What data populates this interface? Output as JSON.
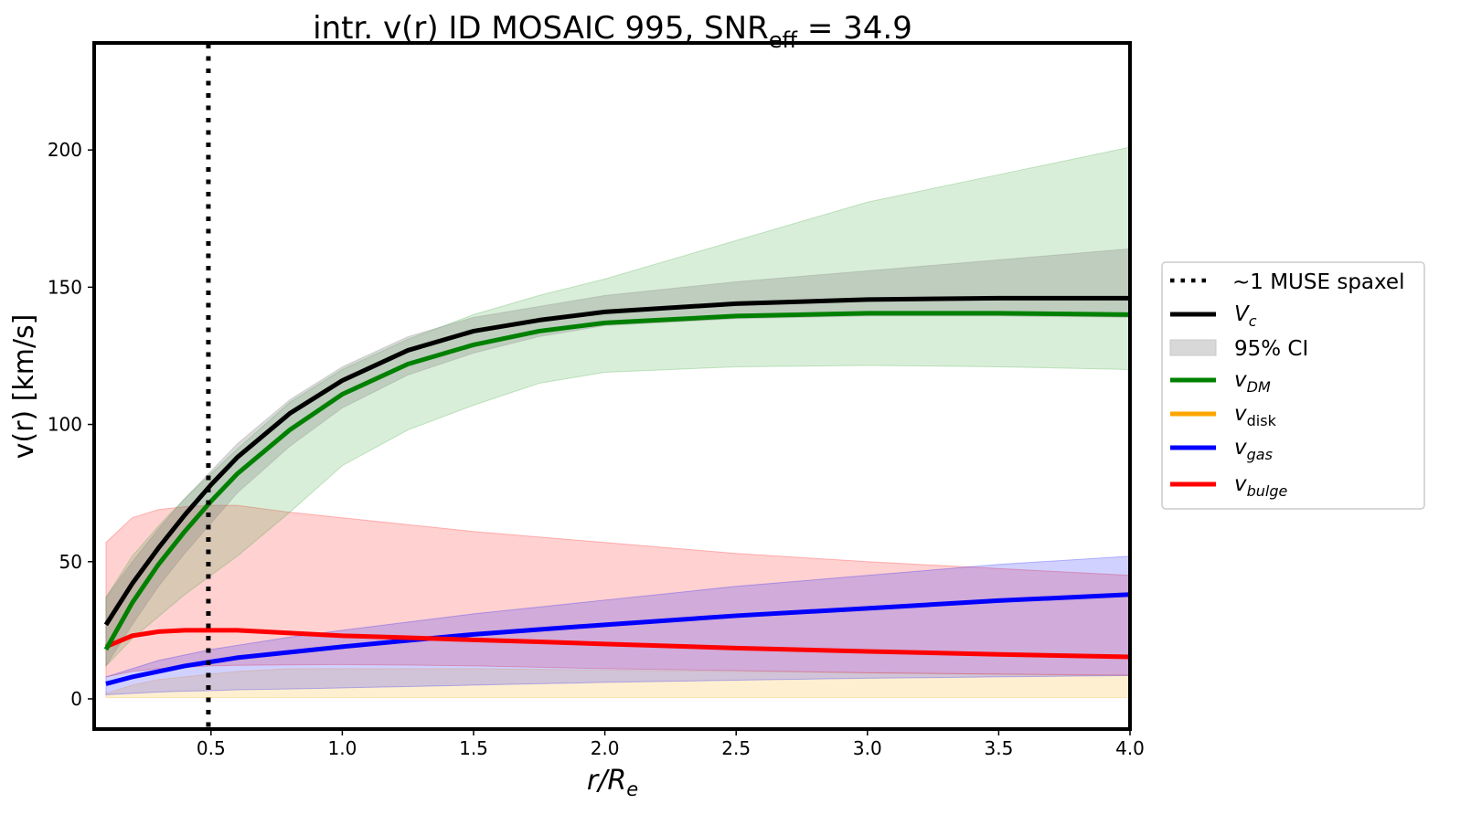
{
  "chart_data": {
    "type": "line",
    "title": "intr. v(r) ID MOSAIC 995, SNR",
    "title_sub": "eff",
    "title_tail": " = 34.9",
    "xlabel": "r/R",
    "xlabel_sub": "e",
    "ylabel": "v(r) [km/s]",
    "xlim": [
      0.055,
      4.0
    ],
    "ylim": [
      -11,
      239
    ],
    "xticks": [
      "0.5",
      "1.0",
      "1.5",
      "2.0",
      "2.5",
      "3.0",
      "3.5",
      "4.0"
    ],
    "yticks": [
      "0",
      "50",
      "100",
      "150",
      "200"
    ],
    "vline": {
      "x": 0.49,
      "label": "~1 MUSE spaxel"
    },
    "x": [
      0.1,
      0.2,
      0.3,
      0.4,
      0.5,
      0.6,
      0.8,
      1.0,
      1.25,
      1.5,
      1.75,
      2.0,
      2.5,
      3.0,
      3.5,
      4.0
    ],
    "series": [
      {
        "name": "V",
        "sub": "c",
        "color": "#000000",
        "values": [
          27,
          42,
          55,
          67,
          78,
          88,
          104,
          116,
          127,
          134,
          138,
          141,
          144,
          145.5,
          146,
          146
        ],
        "ci_lo": [
          12,
          27,
          41,
          53,
          64,
          75,
          92,
          106,
          118,
          126,
          132,
          136,
          138.5,
          139.5,
          139.5,
          139
        ],
        "ci_hi": [
          37,
          50,
          62,
          73,
          83,
          93,
          109,
          121,
          132,
          139,
          143,
          147,
          152,
          156,
          160,
          164
        ],
        "ci_color": "#808080"
      },
      {
        "name": "v",
        "sub": "DM",
        "color": "#008000",
        "values": [
          18,
          35,
          49,
          61,
          72,
          82,
          98,
          111,
          122,
          129,
          134,
          137,
          139.5,
          140.5,
          140.5,
          140
        ],
        "ci_lo": [
          12,
          22,
          30,
          38,
          45,
          52,
          68,
          85,
          98,
          107,
          115,
          119,
          121,
          121.5,
          121,
          120
        ],
        "ci_hi": [
          37,
          52,
          63,
          73,
          82,
          91,
          108,
          120,
          131,
          140,
          147,
          153,
          167,
          181,
          191,
          201
        ],
        "ci_color": "#2ca02c"
      },
      {
        "name": "v",
        "sub": "disk",
        "color": "#ffa500",
        "values": null,
        "ci_lo": [
          0.5,
          0.5,
          0.5,
          0.5,
          0.5,
          0.5,
          0.5,
          0.5,
          0.5,
          0.5,
          0.5,
          0.5,
          0.5,
          0.5,
          0.5,
          0.5
        ],
        "ci_hi": [
          2,
          5,
          7,
          8,
          9,
          10,
          11,
          11,
          11,
          11,
          10.8,
          10.5,
          10,
          9.5,
          9,
          8.5
        ],
        "ci_color": "#ffa500"
      },
      {
        "name": "v",
        "sub": "gas",
        "color": "#0000ff",
        "values": [
          5.5,
          8,
          10,
          12,
          13.5,
          15,
          17,
          19,
          21.3,
          23.5,
          25.3,
          27,
          30.3,
          33,
          35.8,
          38
        ],
        "ci_lo": [
          1.5,
          2,
          2.5,
          2.8,
          3,
          3.3,
          3.6,
          4,
          4.5,
          5,
          5.5,
          6,
          6.8,
          7.5,
          8,
          8.5
        ],
        "ci_hi": [
          8,
          11,
          14,
          16,
          18,
          19.5,
          22.5,
          25,
          28,
          31,
          33.5,
          36,
          41,
          45,
          49,
          52
        ],
        "ci_color": "#0000ff"
      },
      {
        "name": "v",
        "sub": "bulge",
        "color": "#ff0000",
        "values": [
          19,
          23,
          24.5,
          25,
          25,
          25,
          24,
          23,
          22.3,
          21.5,
          20.8,
          20,
          18.5,
          17.3,
          16.2,
          15.3
        ],
        "ci_lo": [
          8,
          10,
          11,
          11.5,
          12,
          12.2,
          12.4,
          12.5,
          12.3,
          12,
          11.5,
          11,
          10.3,
          9.5,
          9,
          8.7
        ],
        "ci_hi": [
          57,
          66,
          69,
          70,
          70.5,
          70.5,
          68,
          66,
          63.5,
          61,
          59,
          57,
          53,
          50,
          47.5,
          45
        ],
        "ci_color": "#ff0000"
      }
    ],
    "legend": {
      "placement": "right",
      "items": [
        "~1 MUSE spaxel",
        "V_c",
        "95% CI",
        "v_DM",
        "v_disk",
        "v_gas",
        "v_bulge"
      ],
      "ci_label": "95% CI"
    }
  }
}
